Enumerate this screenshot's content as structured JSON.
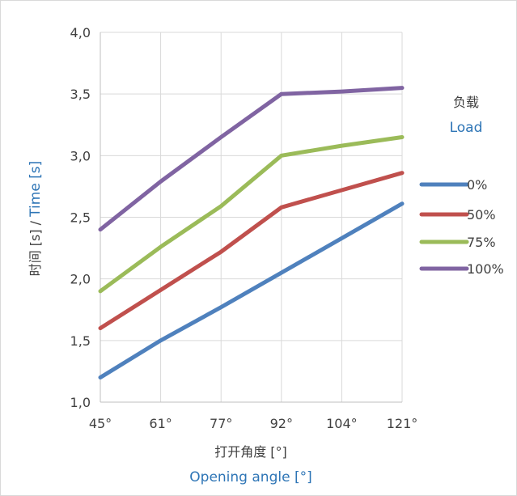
{
  "chart_data": {
    "type": "line",
    "categories": [
      "45°",
      "61°",
      "77°",
      "92°",
      "104°",
      "121°"
    ],
    "series": [
      {
        "name": "0%",
        "color": "#4f81bd",
        "values": [
          1.2,
          1.5,
          1.77,
          2.05,
          2.33,
          2.61
        ]
      },
      {
        "name": "50%",
        "color": "#c0504d",
        "values": [
          1.6,
          1.91,
          2.22,
          2.58,
          2.72,
          2.86
        ]
      },
      {
        "name": "75%",
        "color": "#9bbb59",
        "values": [
          1.9,
          2.26,
          2.59,
          3.0,
          3.08,
          3.15
        ]
      },
      {
        "name": "100%",
        "color": "#8064a2",
        "values": [
          2.4,
          2.79,
          3.15,
          3.5,
          3.52,
          3.55
        ]
      }
    ],
    "y_ticks": [
      "1,0",
      "1,5",
      "2,0",
      "2,5",
      "3,0",
      "3,5",
      "4,0"
    ],
    "ylim": [
      1.0,
      4.0
    ],
    "xlabel_cn": "打开角度 [°]",
    "xlabel_en": "Opening angle [°]",
    "ylabel_cn": "时间 [s] / ",
    "ylabel_en": "Time [s]",
    "legend_title_cn": "负载",
    "legend_title_en": "Load",
    "legend_position": "right",
    "grid": "vertical"
  }
}
